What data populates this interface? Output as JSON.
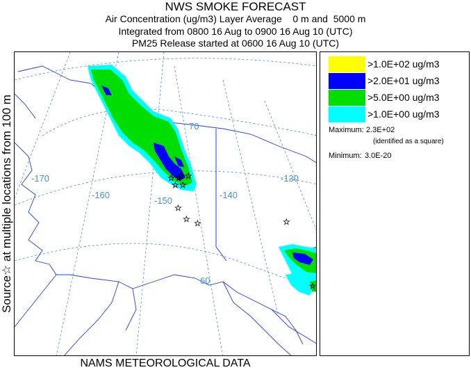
{
  "header": {
    "title": "NWS SMOKE FORECAST",
    "line2": "Air Concentration (ug/m3) Layer Average    0 m and  5000 m",
    "line3": "Integrated from 0800 16 Aug to 0900 16 Aug 10 (UTC)",
    "line4": "PM25 Release started at 0600 16 Aug 10 (UTC)"
  },
  "side_label": "Source☆ at multiple locations   from   100 m",
  "footer": "NAMS METEOROLOGICAL DATA",
  "map": {
    "longitude_labels": [
      "-170",
      "-160",
      "-150",
      "-140",
      "-130"
    ],
    "latitude_labels": [
      "70",
      "60"
    ],
    "colors": {
      "level1": "#ffff00",
      "level2": "#0000ff",
      "level3": "#00dd00",
      "level4": "#00ffff",
      "coastline": "#1e3cff",
      "graticule": "#4a90d9"
    }
  },
  "legend": {
    "levels": [
      {
        "label": ">1.0E+02 ug/m3",
        "color": "#ffff00"
      },
      {
        "label": ">2.0E+01 ug/m3",
        "color": "#0000ff"
      },
      {
        "label": ">5.0E+00 ug/m3",
        "color": "#00dd00"
      },
      {
        "label": ">1.0E+00 ug/m3",
        "color": "#00ffff"
      }
    ],
    "maximum_label": "Maximum:",
    "maximum_value": "2.3E+02",
    "maximum_note": "(identified as a square)",
    "minimum_label": "Minimum:",
    "minimum_value": "3.0E-20"
  }
}
